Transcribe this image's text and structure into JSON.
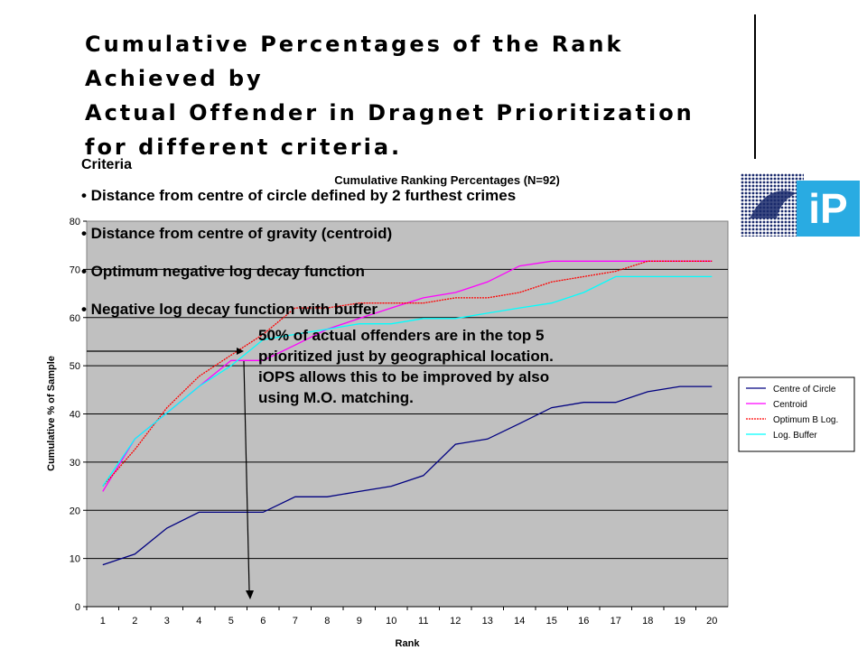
{
  "slide": {
    "title_lines": [
      "Cumulative Percentages of the Rank Achieved by",
      "Actual Offender in Dragnet Prioritization",
      "for different criteria."
    ]
  },
  "logo": {
    "text": "iP",
    "bg_color": "#29ABE2"
  },
  "criteria": {
    "heading": "Criteria",
    "items": [
      "• Distance from centre of circle defined by 2 furthest crimes",
      "• Distance from centre of gravity (centroid)",
      "• Optimum negative log decay function",
      "• Negative log decay function with buffer"
    ]
  },
  "callout": {
    "text": "50% of actual offenders are in the top 5 prioritized just by geographical location. iOPS allows this to be improved by also using M.O. matching."
  },
  "chart_data": {
    "type": "line",
    "title": "Cumulative Ranking Percentages (N=92)",
    "xlabel": "Rank",
    "ylabel": "Cumulative % of Sample",
    "x": [
      1,
      2,
      3,
      4,
      5,
      6,
      7,
      8,
      9,
      10,
      11,
      12,
      13,
      14,
      15,
      16,
      17,
      18,
      19,
      20
    ],
    "ylim": [
      0,
      80
    ],
    "yticks": [
      0,
      10,
      20,
      30,
      40,
      50,
      60,
      70,
      80
    ],
    "grid": true,
    "legend_position": "right",
    "plot_bg": "#C0C0C0",
    "series": [
      {
        "name": "Centre of Circle",
        "color": "#000080",
        "dash": "",
        "values": [
          8.7,
          10.9,
          16.3,
          19.6,
          19.6,
          19.6,
          22.8,
          22.8,
          23.9,
          25.0,
          27.2,
          33.7,
          34.8,
          38.0,
          41.3,
          42.4,
          42.4,
          44.6,
          45.7,
          45.7
        ]
      },
      {
        "name": "Centroid",
        "color": "#FF00FF",
        "dash": "",
        "values": [
          23.9,
          34.8,
          40.2,
          45.7,
          51.1,
          51.1,
          54.3,
          57.6,
          59.8,
          62.0,
          64.1,
          65.2,
          67.4,
          70.7,
          71.7,
          71.7,
          71.7,
          71.7,
          71.7,
          71.7
        ]
      },
      {
        "name": "Optimum B Log.",
        "color": "#FF0000",
        "dash": "2,1",
        "values": [
          25.0,
          32.6,
          41.3,
          47.8,
          52.2,
          56.5,
          62.0,
          62.0,
          63.0,
          63.0,
          63.0,
          64.1,
          64.1,
          65.2,
          67.4,
          68.5,
          69.6,
          71.7,
          71.7,
          71.7
        ]
      },
      {
        "name": "Log. Buffer",
        "color": "#00FFFF",
        "dash": "",
        "values": [
          25.0,
          34.8,
          40.2,
          45.7,
          50.0,
          55.4,
          56.5,
          57.6,
          58.7,
          58.7,
          59.8,
          59.8,
          60.9,
          62.0,
          63.0,
          65.2,
          68.5,
          68.5,
          68.5,
          68.5
        ]
      }
    ]
  }
}
